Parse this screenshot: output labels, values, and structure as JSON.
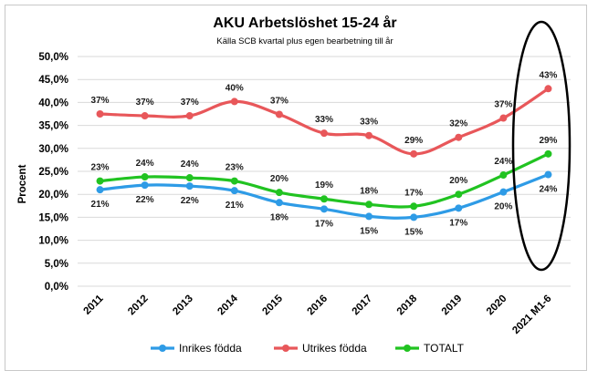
{
  "chart_data": {
    "type": "line",
    "title": "AKU Arbetslöshet 15-24 år",
    "subtitle": "Källa SCB kvartal plus egen bearbetning till år",
    "ylabel": "Procent",
    "xlabel": "",
    "ylim": [
      0,
      50
    ],
    "yticks": [
      "0,0%",
      "5,0%",
      "10,0%",
      "15,0%",
      "20,0%",
      "25,0%",
      "30,0%",
      "35,0%",
      "40,0%",
      "45,0%",
      "50,0%"
    ],
    "categories": [
      "2011",
      "2012",
      "2013",
      "2014",
      "2015",
      "2016",
      "2017",
      "2018",
      "2019",
      "2020",
      "2021 M1-6"
    ],
    "grid": true,
    "legend_position": "bottom",
    "series": [
      {
        "name": "Inrikes födda",
        "color": "#2e9be6",
        "label_position": "below",
        "values": [
          21.0,
          22.0,
          21.8,
          20.8,
          18.2,
          16.8,
          15.2,
          15.0,
          17.0,
          20.5,
          24.3
        ],
        "labels": [
          "21%",
          "22%",
          "22%",
          "21%",
          "18%",
          "17%",
          "15%",
          "15%",
          "17%",
          "20%",
          "24%"
        ]
      },
      {
        "name": "Utrikes födda",
        "color": "#e8575a",
        "label_position": "above",
        "values": [
          37.5,
          37.1,
          37.1,
          40.2,
          37.4,
          33.3,
          32.8,
          28.8,
          32.4,
          36.6,
          43.0
        ],
        "labels": [
          "37%",
          "37%",
          "37%",
          "40%",
          "37%",
          "33%",
          "33%",
          "29%",
          "32%",
          "37%",
          "43%"
        ]
      },
      {
        "name": "TOTALT",
        "color": "#21c321",
        "label_position": "above",
        "values": [
          22.9,
          23.8,
          23.6,
          22.9,
          20.4,
          19.0,
          17.8,
          17.4,
          20.0,
          24.2,
          28.8
        ],
        "labels": [
          "23%",
          "24%",
          "24%",
          "23%",
          "20%",
          "19%",
          "18%",
          "17%",
          "20%",
          "24%",
          "29%"
        ]
      }
    ],
    "annotation": "ellipse around 2021 M1-6"
  }
}
